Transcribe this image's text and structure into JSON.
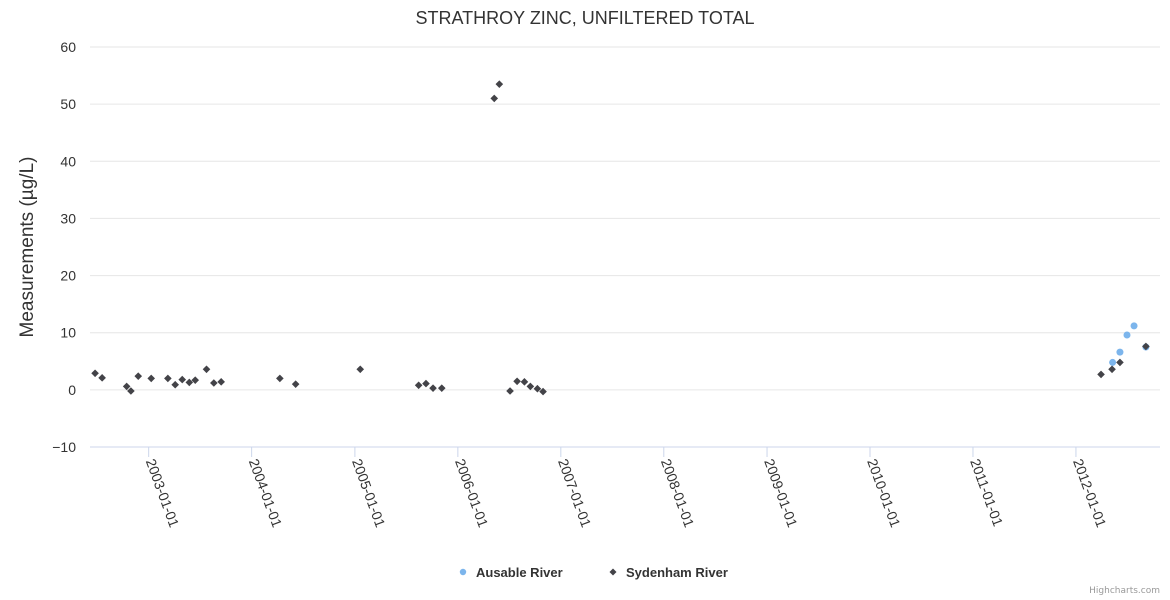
{
  "chart_data": {
    "type": "scatter",
    "title": "STRATHROY ZINC, UNFILTERED TOTAL",
    "xlabel": "",
    "ylabel": "Measurements (µg/L)",
    "ylim": [
      -10,
      60
    ],
    "yticks": [
      -10,
      0,
      10,
      20,
      30,
      40,
      50,
      60
    ],
    "xlim": [
      "2002-06-07",
      "2012-10-25"
    ],
    "xticks": [
      "2003-01-01",
      "2004-01-01",
      "2005-01-01",
      "2006-01-01",
      "2007-01-01",
      "2008-01-01",
      "2009-01-01",
      "2010-01-01",
      "2011-01-01",
      "2012-01-01"
    ],
    "grid": true,
    "legend_position": "bottom-center",
    "series": [
      {
        "name": "Ausable River",
        "marker": "circle",
        "color": "#7cb5ec",
        "points": [
          [
            "2012-05-10",
            4.8
          ],
          [
            "2012-06-05",
            6.6
          ],
          [
            "2012-06-30",
            9.6
          ],
          [
            "2012-07-25",
            11.2
          ],
          [
            "2012-09-05",
            7.5
          ]
        ]
      },
      {
        "name": "Sydenham River",
        "marker": "diamond",
        "color": "#434348",
        "points": [
          [
            "2002-06-25",
            2.9
          ],
          [
            "2002-07-20",
            2.1
          ],
          [
            "2002-10-15",
            0.6
          ],
          [
            "2002-10-30",
            -0.2
          ],
          [
            "2002-11-25",
            2.4
          ],
          [
            "2003-01-10",
            2.0
          ],
          [
            "2003-03-10",
            2.0
          ],
          [
            "2003-04-05",
            0.9
          ],
          [
            "2003-04-30",
            1.8
          ],
          [
            "2003-05-25",
            1.3
          ],
          [
            "2003-06-15",
            1.7
          ],
          [
            "2003-07-25",
            3.6
          ],
          [
            "2003-08-20",
            1.2
          ],
          [
            "2003-09-15",
            1.4
          ],
          [
            "2004-04-10",
            2.0
          ],
          [
            "2004-06-05",
            1.0
          ],
          [
            "2005-01-20",
            3.6
          ],
          [
            "2005-08-15",
            0.8
          ],
          [
            "2005-09-10",
            1.1
          ],
          [
            "2005-10-05",
            0.3
          ],
          [
            "2005-11-05",
            0.3
          ],
          [
            "2006-05-10",
            51.0
          ],
          [
            "2006-05-28",
            53.5
          ],
          [
            "2006-07-05",
            -0.2
          ],
          [
            "2006-07-30",
            1.5
          ],
          [
            "2006-08-25",
            1.4
          ],
          [
            "2006-09-15",
            0.6
          ],
          [
            "2006-10-10",
            0.2
          ],
          [
            "2006-10-30",
            -0.3
          ],
          [
            "2012-03-30",
            2.7
          ],
          [
            "2012-05-08",
            3.6
          ],
          [
            "2012-06-05",
            4.8
          ],
          [
            "2012-09-05",
            7.6
          ]
        ]
      }
    ]
  },
  "credits": "Highcharts.com"
}
